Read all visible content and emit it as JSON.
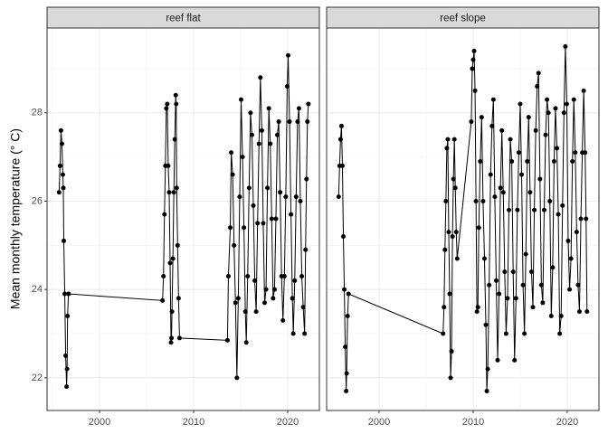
{
  "chart_data": {
    "type": "line",
    "y_label": "Mean monthly temperature (° C)",
    "xlim": [
      1994.42,
      2023.37
    ],
    "xticks": [
      2000,
      2010,
      2020
    ],
    "ylim": [
      21.26,
      29.92
    ],
    "yticks": [
      22,
      24,
      26,
      28
    ],
    "grid": true,
    "color": "#000000",
    "panels": [
      {
        "title": "reef flat",
        "x": [
          1995.7,
          1995.8,
          1995.9,
          1996.0,
          1996.1,
          1996.15,
          1996.2,
          1996.3,
          1996.4,
          1996.5,
          1996.55,
          1996.6,
          1996.7,
          2006.7,
          2006.8,
          2006.9,
          2007.0,
          2007.1,
          2007.2,
          2007.3,
          2007.4,
          2007.5,
          2007.6,
          2007.65,
          2007.7,
          2007.8,
          2007.9,
          2008.0,
          2008.1,
          2008.15,
          2008.2,
          2008.3,
          2008.4,
          2008.5,
          2013.6,
          2013.7,
          2013.9,
          2014.0,
          2014.15,
          2014.3,
          2014.45,
          2014.6,
          2014.75,
          2014.9,
          2015.05,
          2015.2,
          2015.35,
          2015.5,
          2015.6,
          2015.75,
          2015.9,
          2016.05,
          2016.2,
          2016.35,
          2016.5,
          2016.65,
          2016.8,
          2016.95,
          2017.1,
          2017.25,
          2017.4,
          2017.55,
          2017.7,
          2017.85,
          2018.0,
          2018.15,
          2018.3,
          2018.45,
          2018.6,
          2018.75,
          2018.9,
          2019.05,
          2019.2,
          2019.35,
          2019.5,
          2019.65,
          2019.8,
          2019.95,
          2020.05,
          2020.2,
          2020.35,
          2020.5,
          2020.6,
          2020.75,
          2020.9,
          2021.05,
          2021.2,
          2021.35,
          2021.5,
          2021.65,
          2021.8,
          2021.9,
          2022.0,
          2022.1,
          2022.2
        ],
        "values": [
          26.2,
          26.8,
          27.6,
          27.3,
          26.6,
          26.3,
          25.1,
          23.9,
          22.5,
          21.8,
          22.2,
          23.4,
          23.9,
          23.75,
          24.3,
          25.7,
          26.8,
          28.1,
          28.2,
          26.8,
          26.2,
          24.6,
          22.8,
          22.9,
          23.5,
          24.7,
          26.2,
          27.4,
          28.4,
          28.2,
          26.3,
          25.0,
          23.8,
          22.9,
          22.85,
          24.3,
          25.4,
          27.1,
          26.6,
          25.0,
          23.7,
          22.0,
          23.8,
          26.1,
          28.3,
          27.0,
          25.4,
          23.5,
          22.8,
          24.3,
          26.3,
          28.0,
          27.5,
          25.9,
          24.2,
          23.5,
          25.5,
          27.3,
          28.8,
          27.6,
          25.5,
          23.7,
          24.0,
          26.3,
          28.1,
          27.3,
          25.6,
          23.8,
          24.0,
          25.6,
          27.5,
          27.8,
          26.2,
          24.3,
          23.3,
          24.3,
          26.1,
          28.6,
          29.3,
          27.8,
          25.7,
          23.8,
          23.0,
          24.2,
          26.1,
          27.8,
          28.1,
          26.0,
          24.3,
          23.6,
          23.0,
          24.9,
          26.5,
          27.8,
          28.2
        ]
      },
      {
        "title": "reef slope",
        "x": [
          1995.7,
          1995.8,
          1995.9,
          1996.0,
          1996.1,
          1996.2,
          1996.3,
          1996.4,
          1996.5,
          1996.55,
          1996.65,
          1996.75,
          2006.8,
          2006.9,
          2007.0,
          2007.1,
          2007.2,
          2007.3,
          2007.4,
          2007.5,
          2007.6,
          2007.7,
          2007.8,
          2007.9,
          2008.0,
          2008.1,
          2008.2,
          2008.3,
          2009.8,
          2009.9,
          2010.0,
          2010.1,
          2010.2,
          2010.3,
          2010.4,
          2010.5,
          2010.6,
          2010.75,
          2010.9,
          2011.05,
          2011.2,
          2011.35,
          2011.45,
          2011.55,
          2011.7,
          2011.85,
          2012.0,
          2012.15,
          2012.3,
          2012.45,
          2012.6,
          2012.75,
          2012.9,
          2013.05,
          2013.2,
          2013.35,
          2013.5,
          2013.65,
          2013.8,
          2013.95,
          2014.1,
          2014.25,
          2014.4,
          2014.55,
          2014.7,
          2014.85,
          2015.0,
          2015.15,
          2015.3,
          2015.45,
          2015.6,
          2015.75,
          2015.9,
          2016.05,
          2016.2,
          2016.35,
          2016.5,
          2016.65,
          2016.8,
          2016.95,
          2017.1,
          2017.25,
          2017.4,
          2017.55,
          2017.7,
          2017.85,
          2018.0,
          2018.15,
          2018.3,
          2018.45,
          2018.6,
          2018.75,
          2018.9,
          2019.05,
          2019.2,
          2019.35,
          2019.5,
          2019.65,
          2019.8,
          2019.95,
          2020.1,
          2020.25,
          2020.4,
          2020.55,
          2020.7,
          2020.85,
          2021.0,
          2021.15,
          2021.3,
          2021.45,
          2021.6,
          2021.75,
          2021.9,
          2022.0,
          2022.1
        ],
        "values": [
          26.1,
          26.8,
          27.4,
          27.7,
          26.8,
          25.2,
          24.0,
          22.7,
          21.7,
          22.1,
          23.4,
          23.9,
          23.0,
          23.6,
          24.9,
          26.0,
          27.2,
          27.4,
          25.3,
          23.9,
          22.0,
          22.6,
          25.2,
          26.5,
          27.4,
          26.3,
          25.3,
          24.7,
          27.8,
          29.0,
          29.2,
          29.4,
          28.5,
          26.0,
          23.5,
          23.6,
          25.4,
          26.9,
          27.9,
          26.0,
          24.7,
          23.2,
          21.7,
          22.2,
          24.1,
          26.6,
          27.7,
          28.3,
          26.1,
          24.2,
          22.4,
          23.9,
          26.3,
          27.6,
          26.2,
          24.4,
          23.0,
          23.8,
          25.8,
          27.4,
          26.9,
          24.4,
          22.4,
          23.8,
          25.8,
          27.1,
          28.2,
          26.6,
          24.1,
          23.0,
          24.8,
          26.9,
          27.9,
          26.2,
          24.4,
          23.6,
          25.8,
          27.6,
          28.6,
          28.9,
          26.5,
          24.1,
          23.7,
          25.8,
          27.5,
          28.3,
          28.0,
          26.0,
          23.4,
          24.5,
          26.9,
          28.1,
          27.2,
          25.7,
          23.0,
          23.4,
          25.9,
          28.0,
          29.5,
          28.2,
          25.1,
          24.0,
          24.7,
          26.9,
          28.3,
          27.1,
          25.3,
          24.1,
          23.5,
          25.6,
          27.1,
          28.5,
          27.1,
          25.6,
          23.5
        ]
      }
    ]
  }
}
